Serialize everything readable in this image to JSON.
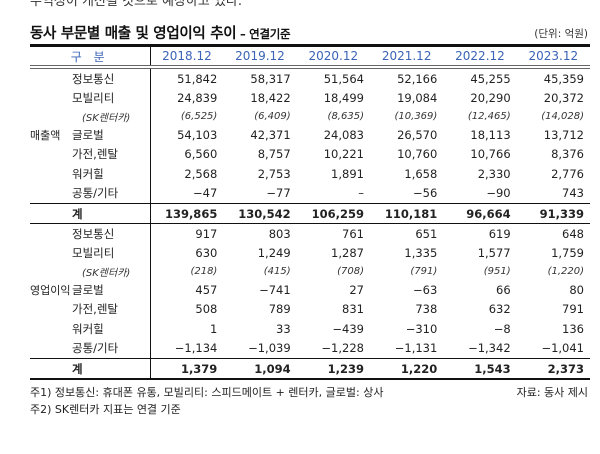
{
  "clipped_top_text": "수익성이 개선될 것으로 예상하고 있다.",
  "title": "동사 부문별 매출 및 영업이익 추이",
  "title_suffix": " – 연결기준",
  "unit": "(단위: 억원)",
  "header": {
    "category": "구 분",
    "years": [
      "2018.12",
      "2019.12",
      "2020.12",
      "2021.12",
      "2022.12",
      "2023.12"
    ]
  },
  "sales": {
    "group_label": "매출액",
    "rows": [
      {
        "label": "정보통신",
        "values": [
          "51,842",
          "58,317",
          "51,564",
          "52,166",
          "45,255",
          "45,359"
        ]
      },
      {
        "label": "모빌리티",
        "values": [
          "24,839",
          "18,422",
          "18,499",
          "19,084",
          "20,290",
          "20,372"
        ]
      },
      {
        "label": "(SK렌터카)",
        "values": [
          "(6,525)",
          "(6,409)",
          "(8,635)",
          "(10,369)",
          "(12,465)",
          "(14,028)"
        ],
        "sub": true
      },
      {
        "label": "글로벌",
        "values": [
          "54,103",
          "42,371",
          "24,083",
          "26,570",
          "18,113",
          "13,712"
        ]
      },
      {
        "label": "가전,렌탈",
        "values": [
          "6,560",
          "8,757",
          "10,221",
          "10,760",
          "10,766",
          "8,376"
        ]
      },
      {
        "label": "워커힐",
        "values": [
          "2,568",
          "2,753",
          "1,891",
          "1,658",
          "2,330",
          "2,776"
        ]
      },
      {
        "label": "공통/기타",
        "values": [
          "−47",
          "−77",
          "–",
          "−56",
          "−90",
          "743"
        ]
      }
    ],
    "total": {
      "label": "계",
      "values": [
        "139,865",
        "130,542",
        "106,259",
        "110,181",
        "96,664",
        "91,339"
      ]
    }
  },
  "operating_profit": {
    "group_label": "영업이익",
    "rows": [
      {
        "label": "정보통신",
        "values": [
          "917",
          "803",
          "761",
          "651",
          "619",
          "648"
        ]
      },
      {
        "label": "모빌리티",
        "values": [
          "630",
          "1,249",
          "1,287",
          "1,335",
          "1,577",
          "1,759"
        ]
      },
      {
        "label": "(SK렌터카)",
        "values": [
          "(218)",
          "(415)",
          "(708)",
          "(791)",
          "(951)",
          "(1,220)"
        ],
        "sub": true
      },
      {
        "label": "글로벌",
        "values": [
          "457",
          "−741",
          "27",
          "−63",
          "66",
          "80"
        ]
      },
      {
        "label": "가전,렌탈",
        "values": [
          "508",
          "789",
          "831",
          "738",
          "632",
          "791"
        ]
      },
      {
        "label": "워커힐",
        "values": [
          "1",
          "33",
          "−439",
          "−310",
          "−8",
          "136"
        ]
      },
      {
        "label": "공통/기타",
        "values": [
          "−1,134",
          "−1,039",
          "−1,228",
          "−1,131",
          "−1,342",
          "−1,041"
        ]
      }
    ],
    "total": {
      "label": "계",
      "values": [
        "1,379",
        "1,094",
        "1,239",
        "1,220",
        "1,543",
        "2,373"
      ]
    }
  },
  "notes": {
    "note1": "주1) 정보통신: 휴대폰 유통, 모빌리티: 스피드메이트 + 렌터카, 글로벌: 상사",
    "note2": "주2) SK렌터카 지표는 연결 기준",
    "source": "자료: 동사 제시"
  },
  "colors": {
    "header_text": "#3a63b7",
    "rule": "#111111",
    "header_double_rule": "#666666"
  }
}
